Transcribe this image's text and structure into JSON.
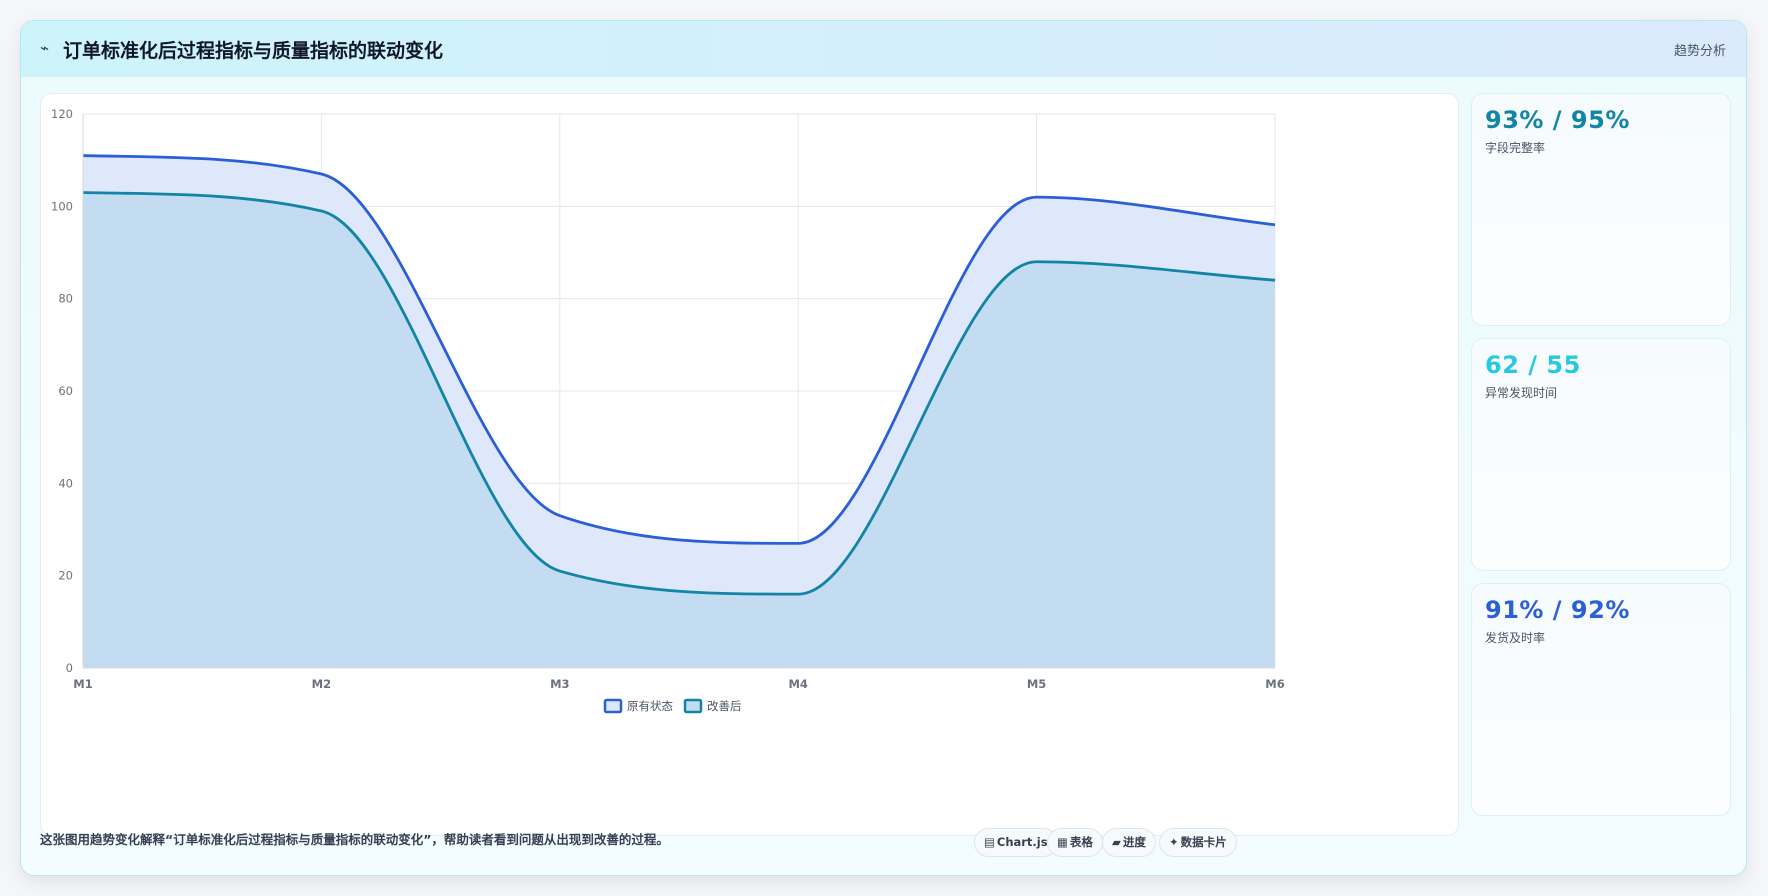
{
  "header": {
    "icon": "trend-icon",
    "title": "订单标准化后过程指标与质量指标的联动变化",
    "link": "趋势分析"
  },
  "colors": {
    "original": "#2a5fd6",
    "improved": "#1284a6",
    "accent_cyan": "#27c9de"
  },
  "stats": [
    {
      "value": "93% / 95%",
      "label": "字段完整率",
      "color": "#1284a6"
    },
    {
      "value": "62 / 55",
      "label": "异常发现时间",
      "color": "#27c9de"
    },
    {
      "value": "91% / 92%",
      "label": "发货及时率",
      "color": "#2a5fd6"
    }
  ],
  "footer": {
    "description": "这张图用趋势变化解释“订单标准化后过程指标与质量指标的联动变化”，帮助读者看到问题从出现到改善的过程。",
    "chips": [
      {
        "icon": "chart-icon",
        "glyph": "▤",
        "label": "Chart.js"
      },
      {
        "icon": "table-icon",
        "glyph": "▦",
        "label": "表格"
      },
      {
        "icon": "progress-icon",
        "glyph": "▰",
        "label": "进度"
      },
      {
        "icon": "card-icon",
        "glyph": "✦",
        "label": "数据卡片"
      }
    ]
  },
  "chart_data": {
    "type": "area",
    "categories": [
      "M1",
      "M2",
      "M3",
      "M4",
      "M5",
      "M6"
    ],
    "y_ticks": [
      0,
      20,
      40,
      60,
      80,
      100,
      120
    ],
    "ylim": [
      0,
      120
    ],
    "grid": true,
    "legend_position": "bottom-center",
    "series": [
      {
        "name": "原有状态",
        "values": [
          111,
          107,
          33,
          27,
          102,
          96
        ],
        "color": "#2a5fd6",
        "fill": "#dfe8fb"
      },
      {
        "name": "改善后",
        "values": [
          103,
          99,
          21,
          16,
          88,
          84
        ],
        "color": "#1284a6",
        "fill": "#c3dcf1"
      }
    ]
  }
}
